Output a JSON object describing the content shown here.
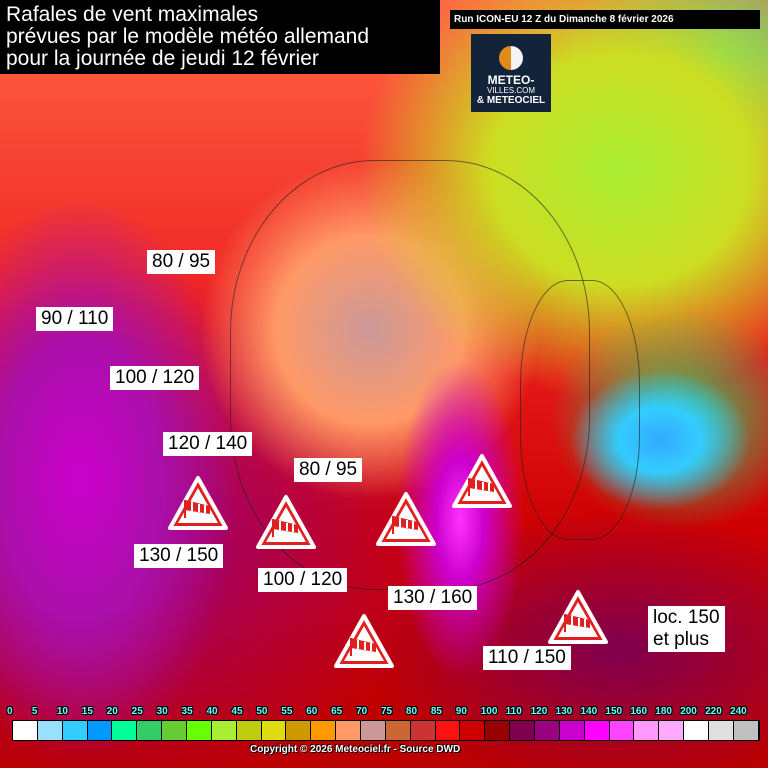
{
  "title": [
    "Rafales de vent maximales",
    "prévues par le modèle météo allemand",
    "pour la journée de jeudi 12 février"
  ],
  "run": "Run ICON-EU 12 Z du Dimanche 8 février 2026",
  "logo": {
    "line1": "METEO-",
    "line2": "VILLES.COM",
    "line3": "& METEOCIEL"
  },
  "labels": [
    "80 / 95",
    "90 / 110",
    "100 / 120",
    "120 / 140",
    "80 / 95",
    "130 / 150",
    "100 / 120",
    "130 / 160",
    "110 / 150",
    "loc. 150\net plus"
  ],
  "warning_icon": "windsock-warning-triangle-icon",
  "legend": {
    "values": [
      "0",
      "5",
      "10",
      "15",
      "20",
      "25",
      "30",
      "35",
      "40",
      "45",
      "50",
      "55",
      "60",
      "65",
      "70",
      "75",
      "80",
      "85",
      "90",
      "100",
      "110",
      "120",
      "130",
      "140",
      "150",
      "160",
      "180",
      "200",
      "220",
      "240"
    ],
    "colors": [
      "#ffffff",
      "#99e0ff",
      "#33ccff",
      "#0099ff",
      "#00ff99",
      "#33cc66",
      "#66cc33",
      "#66ff00",
      "#aaee33",
      "#c0cc11",
      "#dddd11",
      "#cc9900",
      "#ff9900",
      "#ff9966",
      "#cc9999",
      "#cc6633",
      "#cc3333",
      "#ff1111",
      "#cc0000",
      "#990000",
      "#800050",
      "#990080",
      "#cc00cc",
      "#ff00ff",
      "#ff44ff",
      "#ff99ff",
      "#ffaaff",
      "#ffffff",
      "#e0e0e0",
      "#c0c0c0"
    ]
  },
  "copyright": "Copyright © 2026 Meteociel.fr - Source DWD"
}
